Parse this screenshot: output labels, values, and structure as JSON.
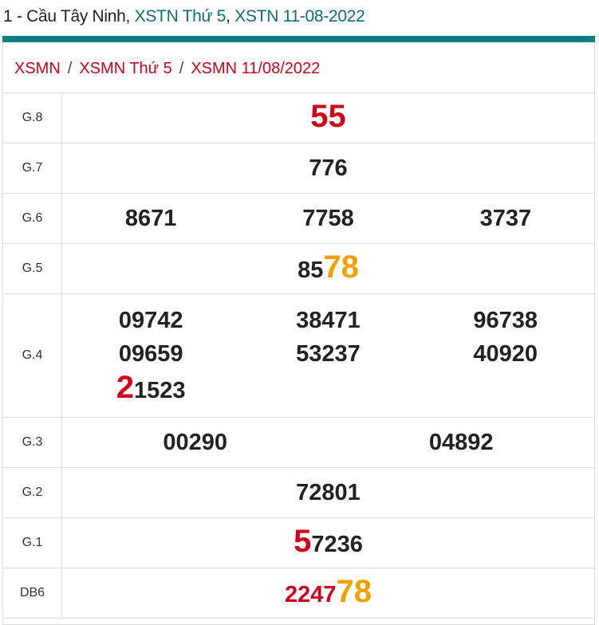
{
  "header": {
    "prefix": "1 - Cầu Tây Ninh, ",
    "link1": "XSTN Thứ 5",
    "comma": ", ",
    "link2": "XSTN 11-08-2022"
  },
  "colors": {
    "teal": "#067f82",
    "red": "#d0021b",
    "orange": "#f5a000"
  },
  "breadcrumb": [
    {
      "label": "XSMN"
    },
    {
      "label": "XSMN Thứ 5"
    },
    {
      "label": "XSMN 11/08/2022"
    }
  ],
  "breadcrumb_sep": "/",
  "prizes": [
    {
      "label": "G.8",
      "numbers": [
        [
          {
            "t": "55",
            "c": "r"
          }
        ]
      ]
    },
    {
      "label": "G.7",
      "numbers": [
        [
          {
            "t": "776",
            "c": ""
          }
        ]
      ]
    },
    {
      "label": "G.6",
      "numbers": [
        [
          {
            "t": "8671",
            "c": ""
          }
        ],
        [
          {
            "t": "7758",
            "c": ""
          }
        ],
        [
          {
            "t": "3737",
            "c": ""
          }
        ]
      ]
    },
    {
      "label": "G.5",
      "numbers": [
        [
          {
            "t": "85",
            "c": ""
          },
          {
            "t": "78",
            "c": "o"
          }
        ]
      ]
    },
    {
      "label": "G.4",
      "numbers": [
        [
          {
            "t": "09742",
            "c": ""
          }
        ],
        [
          {
            "t": "38471",
            "c": ""
          }
        ],
        [
          {
            "t": "96738",
            "c": ""
          }
        ],
        [
          {
            "t": "09659",
            "c": ""
          }
        ],
        [
          {
            "t": "53237",
            "c": ""
          }
        ],
        [
          {
            "t": "40920",
            "c": ""
          }
        ],
        [
          {
            "t": "2",
            "c": "r"
          },
          {
            "t": "1523",
            "c": ""
          }
        ]
      ]
    },
    {
      "label": "G.3",
      "numbers": [
        [
          {
            "t": "00290",
            "c": ""
          }
        ],
        [
          {
            "t": "04892",
            "c": ""
          }
        ]
      ]
    },
    {
      "label": "G.2",
      "numbers": [
        [
          {
            "t": "72801",
            "c": ""
          }
        ]
      ]
    },
    {
      "label": "G.1",
      "numbers": [
        [
          {
            "t": "5",
            "c": "r"
          },
          {
            "t": "7236",
            "c": ""
          }
        ]
      ]
    },
    {
      "label": "DB6",
      "numbers": [
        [
          {
            "t": "2247",
            "c": "rs"
          },
          {
            "t": "78",
            "c": "o"
          }
        ]
      ]
    }
  ]
}
